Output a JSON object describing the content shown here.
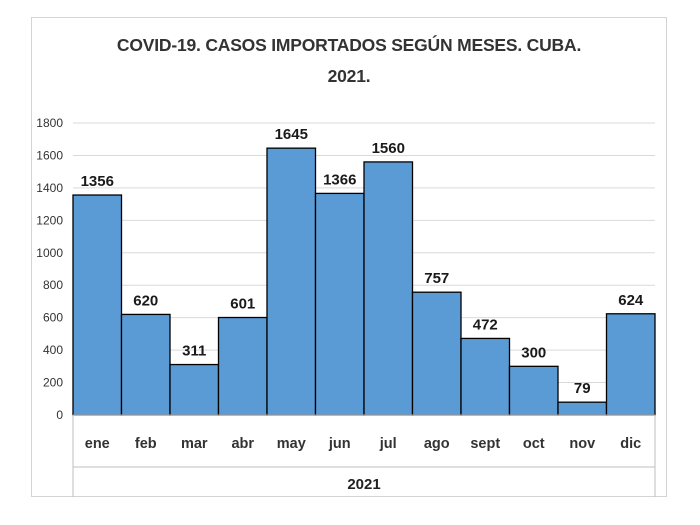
{
  "chart_data": {
    "type": "bar",
    "title_line1": "COVID-19. CASOS IMPORTADOS SEGÚN MESES. CUBA.",
    "title_line2": "2021.",
    "categories": [
      "ene",
      "feb",
      "mar",
      "abr",
      "may",
      "jun",
      "jul",
      "ago",
      "sept",
      "oct",
      "nov",
      "dic"
    ],
    "values": [
      1356,
      620,
      311,
      601,
      1645,
      1366,
      1560,
      757,
      472,
      300,
      79,
      624
    ],
    "xlabel": "2021",
    "ylabel": "",
    "ylim": [
      0,
      1800
    ],
    "yticks": [
      0,
      200,
      400,
      600,
      800,
      1000,
      1200,
      1400,
      1600,
      1800
    ],
    "grid": true,
    "legend": "none",
    "bar_color": "#5B9BD5",
    "bar_edge_color": "#000000"
  }
}
